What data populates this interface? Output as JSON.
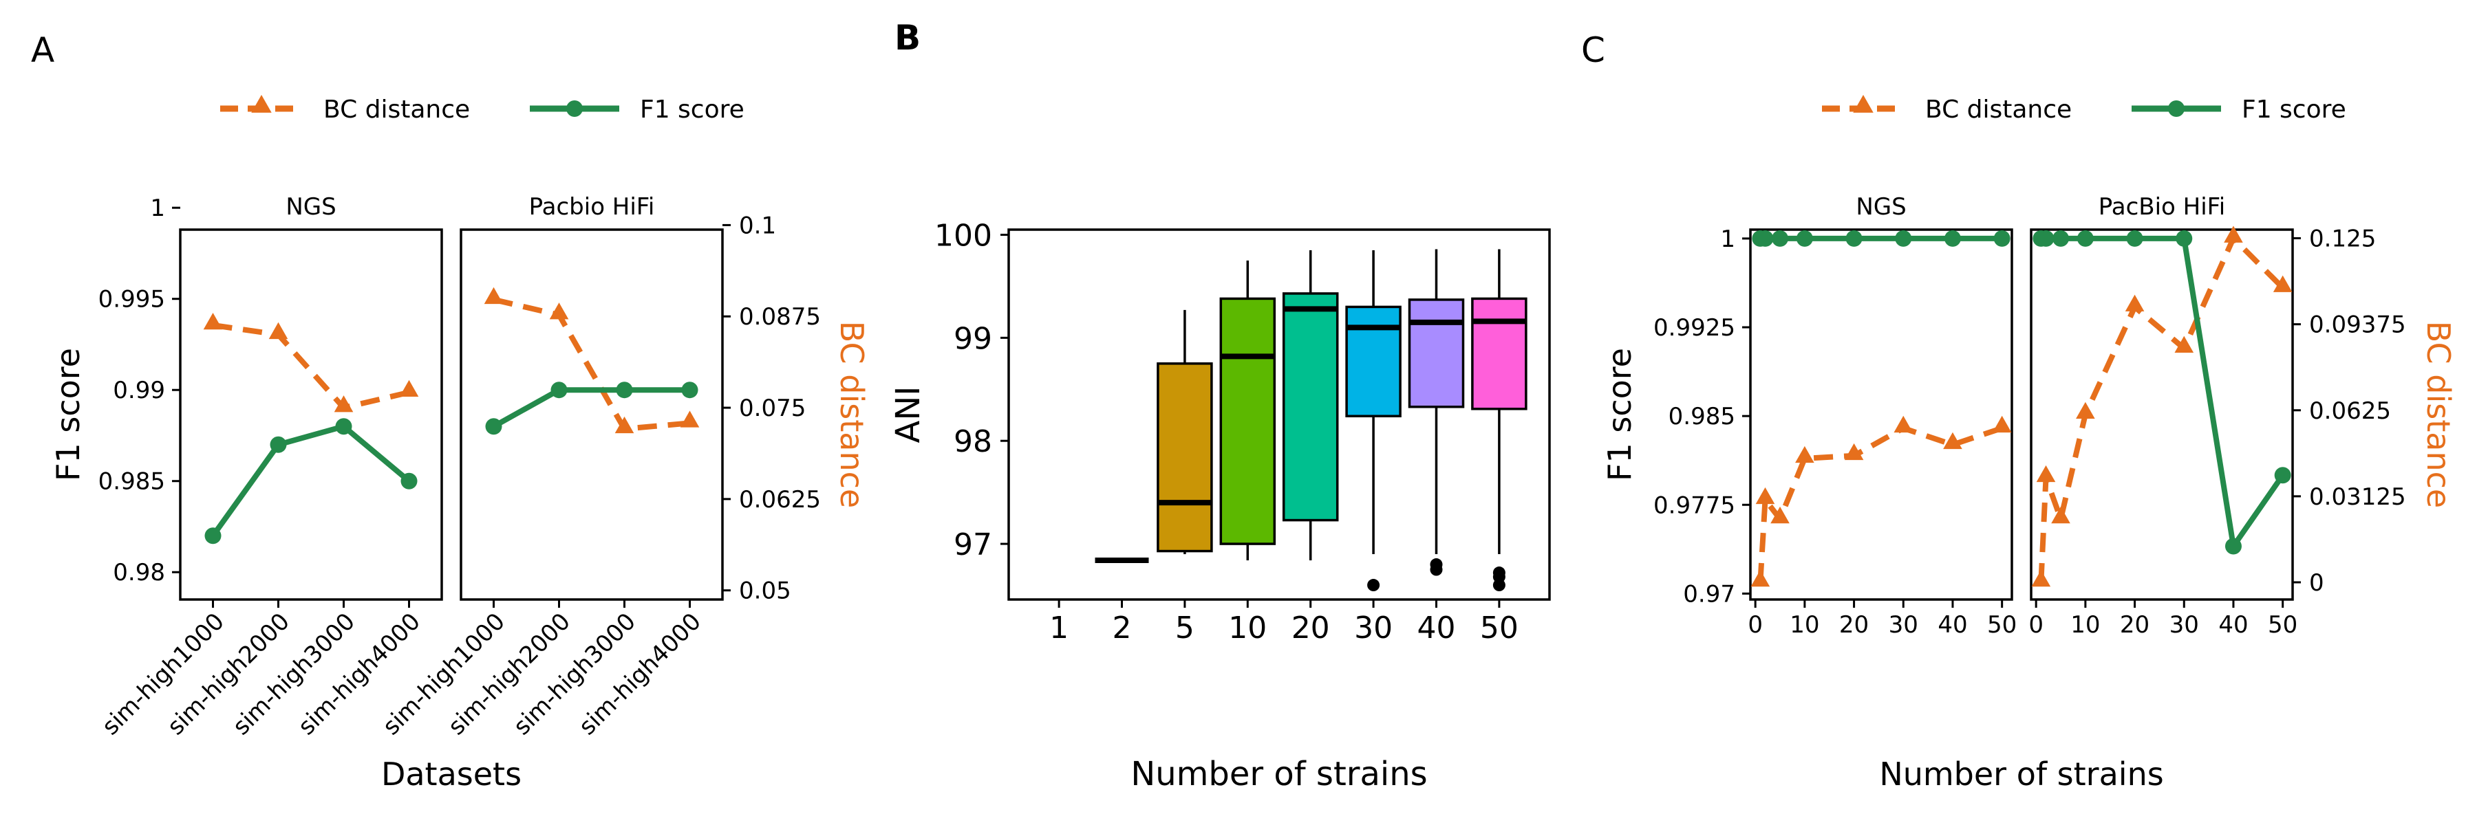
{
  "colors": {
    "bc": "#E66F1C",
    "f1": "#248A4B",
    "axis": "#000000",
    "boxes": [
      "#C99506",
      "#5CB800",
      "#00BF8F",
      "#00B3E6",
      "#A88CFF",
      "#FF5FDA"
    ]
  },
  "chart_data": [
    {
      "panel_label": "A",
      "type": "line",
      "legend": [
        "BC distance",
        "F1 score"
      ],
      "legend_position": "top",
      "xlabel": "Datasets",
      "ylabel": "F1 score",
      "ylabel_right": "BC distance",
      "categories": [
        "sim-high1000",
        "sim-high2000",
        "sim-high3000",
        "sim-high4000"
      ],
      "ylim": [
        0.9785,
        0.9988
      ],
      "ylim_right": [
        0.04875,
        0.09938
      ],
      "yticks": [
        0.98,
        0.985,
        0.99,
        0.995,
        1
      ],
      "ytick_labels": [
        "0.98",
        "0.985",
        "0.99",
        "0.995",
        "1"
      ],
      "yticks_right": [
        0.05,
        0.0625,
        0.075,
        0.0875,
        0.1
      ],
      "ytick_labels_right": [
        "0.05",
        "0.0625",
        "0.075",
        "0.0875",
        "0.1"
      ],
      "facets": [
        {
          "title": "NGS",
          "series": [
            {
              "name": "BC distance",
              "axis": "right",
              "values": [
                0.0863,
                0.085,
                0.075,
                0.0771
              ]
            },
            {
              "name": "F1 score",
              "axis": "left",
              "values": [
                0.982,
                0.987,
                0.988,
                0.985
              ]
            }
          ]
        },
        {
          "title": "Pacbio HiFi",
          "series": [
            {
              "name": "BC distance",
              "axis": "right",
              "values": [
                0.0898,
                0.0877,
                0.0721,
                0.0729
              ]
            },
            {
              "name": "F1 score",
              "axis": "left",
              "values": [
                0.988,
                0.99,
                0.99,
                0.99
              ]
            }
          ]
        }
      ]
    },
    {
      "panel_label": "B",
      "type": "box",
      "xlabel": "Number of strains",
      "ylabel": "ANI",
      "categories": [
        "1",
        "2",
        "5",
        "10",
        "20",
        "30",
        "40",
        "50"
      ],
      "ylim": [
        96.46,
        100.05
      ],
      "yticks": [
        97,
        98,
        99,
        100
      ],
      "ytick_labels": [
        "97",
        "98",
        "99",
        "100"
      ],
      "boxes": [
        {
          "category": "1",
          "empty": true
        },
        {
          "category": "2",
          "q1": 96.84,
          "median": 96.84,
          "q3": 96.84,
          "whisker_low": 96.84,
          "whisker_high": 96.84,
          "outliers": []
        },
        {
          "category": "5",
          "q1": 96.93,
          "median": 97.4,
          "q3": 98.75,
          "whisker_low": 96.9,
          "whisker_high": 99.27,
          "outliers": []
        },
        {
          "category": "10",
          "q1": 97.0,
          "median": 98.82,
          "q3": 99.38,
          "whisker_low": 96.84,
          "whisker_high": 99.75,
          "outliers": []
        },
        {
          "category": "20",
          "q1": 97.23,
          "median": 99.28,
          "q3": 99.43,
          "whisker_low": 96.84,
          "whisker_high": 99.85,
          "outliers": []
        },
        {
          "category": "30",
          "q1": 98.24,
          "median": 99.1,
          "q3": 99.3,
          "whisker_low": 96.9,
          "whisker_high": 99.85,
          "outliers": [
            96.6
          ]
        },
        {
          "category": "40",
          "q1": 98.33,
          "median": 99.15,
          "q3": 99.37,
          "whisker_low": 96.9,
          "whisker_high": 99.86,
          "outliers": [
            96.8,
            96.75
          ]
        },
        {
          "category": "50",
          "q1": 98.31,
          "median": 99.16,
          "q3": 99.38,
          "whisker_low": 96.9,
          "whisker_high": 99.86,
          "outliers": [
            96.72,
            96.68,
            96.6
          ]
        }
      ]
    },
    {
      "panel_label": "C",
      "type": "line",
      "legend": [
        "BC distance",
        "F1 score"
      ],
      "legend_position": "top",
      "xlabel": "Number of strains",
      "ylabel": "F1 score",
      "ylabel_right": "BC distance",
      "x": [
        1,
        2,
        5,
        10,
        20,
        30,
        40,
        50
      ],
      "xlim": [
        -1,
        52
      ],
      "xticks": [
        0,
        10,
        20,
        30,
        40,
        50
      ],
      "ylim": [
        0.9695,
        1.00075
      ],
      "ylim_right": [
        -0.00625,
        0.12813
      ],
      "yticks": [
        0.97,
        0.9775,
        0.985,
        0.9925,
        1
      ],
      "ytick_labels": [
        "0.97",
        "0.9775",
        "0.985",
        "0.9925",
        "1"
      ],
      "yticks_right": [
        0,
        0.03125,
        0.0625,
        0.09375,
        0.125
      ],
      "ytick_labels_right": [
        "0",
        "0.03125",
        "0.0625",
        "0.09375",
        "0.125"
      ],
      "facets": [
        {
          "title": "NGS",
          "series": [
            {
              "name": "BC distance",
              "axis": "right",
              "values": [
                0,
                0.03,
                0.023,
                0.045,
                0.046,
                0.056,
                0.05,
                0.056
              ]
            },
            {
              "name": "F1 score",
              "axis": "left",
              "values": [
                1,
                1,
                1,
                1,
                1,
                1,
                1,
                1
              ]
            }
          ]
        },
        {
          "title": "PacBio HiFi",
          "series": [
            {
              "name": "BC distance",
              "axis": "right",
              "values": [
                0,
                0.038,
                0.023,
                0.061,
                0.1,
                0.085,
                0.125,
                0.107
              ]
            },
            {
              "name": "F1 score",
              "axis": "left",
              "values": [
                1,
                1,
                1,
                1,
                1,
                1,
                0.974,
                0.98
              ]
            }
          ]
        }
      ]
    }
  ]
}
